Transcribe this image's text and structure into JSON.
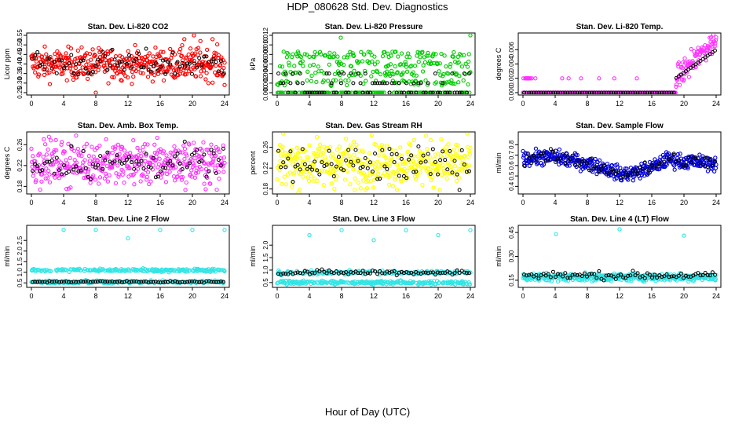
{
  "title": "HDP_080628  Std. Dev. Diagnostics",
  "xlabel": "Hour of Day (UTC)",
  "chart_data": [
    {
      "type": "scatter",
      "title": "Stan. Dev. Li-820 CO2",
      "ylabel": "Licor ppm",
      "color": "#ff0000",
      "xlim": [
        0,
        24
      ],
      "ylim": [
        0.25,
        0.55
      ],
      "xticks": [
        0,
        4,
        8,
        12,
        16,
        20,
        24
      ],
      "yticks": [
        0.25,
        0.3,
        0.35,
        0.4,
        0.45,
        0.5,
        0.55
      ],
      "ytick_labels": [
        "0.25",
        "0.30",
        "0.35",
        "0.40",
        "0.45",
        "0.50",
        "0.55"
      ],
      "series_main_summary": {
        "center": 0.4,
        "spread": 0.04,
        "outliers": [
          [
            8.0,
            0.25
          ],
          [
            19.0,
            0.53
          ],
          [
            20.2,
            0.55
          ],
          [
            21.0,
            0.52
          ],
          [
            22.5,
            0.53
          ],
          [
            24.0,
            0.29
          ]
        ]
      },
      "series_secondary_summary": {
        "center": 0.4,
        "spread": 0.035
      }
    },
    {
      "type": "scatter",
      "title": "Stan. Dev. Li-820 Pressure",
      "ylabel": "kPa",
      "color": "#00cc00",
      "xlim": [
        0,
        24
      ],
      "ylim": [
        0.0,
        0.012
      ],
      "xticks": [
        0,
        4,
        8,
        12,
        16,
        20,
        24
      ],
      "yticks": [
        0.0,
        0.002,
        0.004,
        0.006,
        0.008,
        0.01,
        0.012
      ],
      "ytick_labels": [
        "0.000",
        "0.002",
        "0.004",
        "0.006",
        "0.008",
        "0.010",
        "0.012"
      ],
      "series_main_summary": {
        "levels": [
          0.0,
          0.002,
          0.004,
          0.006,
          0.008
        ],
        "outliers": [
          [
            7.9,
            0.0115
          ],
          [
            24.0,
            0.012
          ]
        ]
      },
      "series_secondary_summary": {
        "levels": [
          0.0,
          0.002,
          0.004
        ]
      }
    },
    {
      "type": "scatter",
      "title": "Stan. Dev. Li-820 Temp.",
      "ylabel": "degrees C",
      "color": "#ff33ff",
      "xlim": [
        0,
        24
      ],
      "ylim": [
        0.0,
        0.008
      ],
      "xticks": [
        0,
        4,
        8,
        12,
        16,
        20,
        24
      ],
      "yticks": [
        0.0,
        0.002,
        0.004,
        0.006
      ],
      "ytick_labels": [
        "0.000",
        "0.002",
        "0.004",
        "0.006"
      ],
      "series_main_summary": {
        "baseline": 0.0,
        "early_level": 0.002,
        "late_rise": "from hour 19 to 24, up to 0.008"
      },
      "series_secondary_summary": {
        "baseline": 0.0,
        "late_rise": "up to 0.006"
      }
    },
    {
      "type": "scatter",
      "title": "Stan. Dev. Amb. Box Temp.",
      "ylabel": "degrees C",
      "color": "#ff33ff",
      "xlim": [
        0,
        24
      ],
      "ylim": [
        0.17,
        0.28
      ],
      "xticks": [
        0,
        4,
        8,
        12,
        16,
        20,
        24
      ],
      "yticks": [
        0.18,
        0.22,
        0.26
      ],
      "ytick_labels": [
        "0.18",
        "0.22",
        "0.26"
      ],
      "series_main_summary": {
        "center": 0.225,
        "spread": 0.02
      },
      "series_secondary_summary": {
        "center": 0.225,
        "spread": 0.015
      }
    },
    {
      "type": "scatter",
      "title": "Stan. Dev. Gas Stream RH",
      "ylabel": "percent",
      "color": "#ffff00",
      "xlim": [
        0,
        24
      ],
      "ylim": [
        0.175,
        0.285
      ],
      "xticks": [
        0,
        4,
        8,
        12,
        16,
        20,
        24
      ],
      "yticks": [
        0.18,
        0.22,
        0.26
      ],
      "ytick_labels": [
        "0.18",
        "0.22",
        "0.26"
      ],
      "series_main_summary": {
        "center": 0.23,
        "spread": 0.022
      },
      "series_secondary_summary": {
        "center": 0.225,
        "spread": 0.018
      }
    },
    {
      "type": "scatter",
      "title": "Stan. Dev. Sample Flow",
      "ylabel": "ml/min",
      "color": "#0000dd",
      "xlim": [
        0,
        24
      ],
      "ylim": [
        0.35,
        0.9
      ],
      "xticks": [
        0,
        4,
        8,
        12,
        16,
        20,
        24
      ],
      "yticks": [
        0.4,
        0.5,
        0.6,
        0.7,
        0.8
      ],
      "ytick_labels": [
        "0.4",
        "0.5",
        "0.6",
        "0.7",
        "0.8"
      ],
      "series_main_summary": {
        "profile": [
          [
            0,
            0.67
          ],
          [
            4,
            0.68
          ],
          [
            8,
            0.62
          ],
          [
            10,
            0.58
          ],
          [
            12,
            0.52
          ],
          [
            14,
            0.53
          ],
          [
            16,
            0.58
          ],
          [
            18,
            0.66
          ],
          [
            20,
            0.64
          ],
          [
            24,
            0.62
          ]
        ],
        "spread": 0.035
      },
      "series_secondary_summary": {
        "profile": "follows main series"
      }
    },
    {
      "type": "scatter",
      "title": "Stan. Dev. Line 2 Flow",
      "ylabel": "ml/min",
      "color": "#33e5e5",
      "xlim": [
        0,
        24
      ],
      "ylim": [
        0.4,
        3.1
      ],
      "xticks": [
        0,
        4,
        8,
        12,
        16,
        20,
        24
      ],
      "yticks": [
        0.5,
        1.0,
        1.5,
        2.0,
        2.5
      ],
      "ytick_labels": [
        "0.5",
        "1.0",
        "1.5",
        "2.0",
        "2.5"
      ],
      "series_main_summary": {
        "levels": [
          0.55,
          1.1
        ],
        "outliers": [
          [
            4.0,
            3.0
          ],
          [
            8.0,
            3.0
          ],
          [
            12.0,
            2.6
          ],
          [
            16.0,
            3.0
          ],
          [
            20.0,
            3.0
          ],
          [
            24.0,
            3.0
          ]
        ]
      },
      "series_secondary_summary": {
        "level": 0.55
      }
    },
    {
      "type": "scatter",
      "title": "Stan. Dev. Line 3 Flow",
      "ylabel": "ml/min",
      "color": "#33e5e5",
      "xlim": [
        0,
        24
      ],
      "ylim": [
        0.4,
        2.7
      ],
      "xticks": [
        0,
        4,
        8,
        12,
        16,
        20,
        24
      ],
      "yticks": [
        0.5,
        1.0,
        1.5,
        2.0
      ],
      "ytick_labels": [
        "0.5",
        "1.0",
        "1.5",
        "2.0"
      ],
      "series_main_summary": {
        "levels": [
          0.5,
          0.9
        ],
        "outliers": [
          [
            4.0,
            2.4
          ],
          [
            8.0,
            2.6
          ],
          [
            12.0,
            2.2
          ],
          [
            16.0,
            2.6
          ],
          [
            20.0,
            2.4
          ],
          [
            24.0,
            2.6
          ]
        ]
      },
      "series_secondary_summary": {
        "level": 0.9
      }
    },
    {
      "type": "scatter",
      "title": "Stan. Dev. Line 4 (LT) Flow",
      "ylabel": "ml/min",
      "color": "#33e5e5",
      "xlim": [
        0,
        24
      ],
      "ylim": [
        0.12,
        0.48
      ],
      "xticks": [
        0,
        4,
        8,
        12,
        16,
        20,
        24
      ],
      "yticks": [
        0.15,
        0.3,
        0.45
      ],
      "ytick_labels": [
        "0.15",
        "0.30",
        "0.45"
      ],
      "series_main_summary": {
        "level": 0.17,
        "outliers": [
          [
            4.1,
            0.44
          ],
          [
            12.0,
            0.47
          ],
          [
            20.0,
            0.43
          ]
        ]
      },
      "series_secondary_summary": {
        "level": 0.18
      }
    }
  ]
}
